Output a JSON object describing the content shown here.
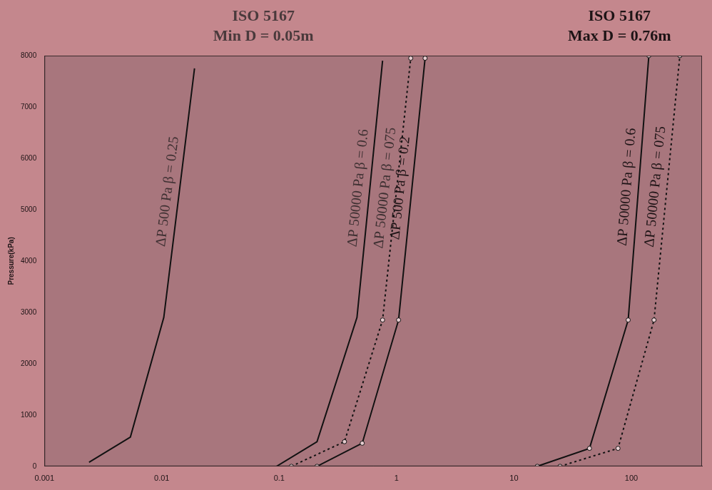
{
  "chart_data": {
    "type": "line",
    "annotations": [
      [
        "ISO 5167",
        "Min D = 0.05m"
      ],
      [
        "ISO 5167",
        "Max D = 0.76m"
      ]
    ],
    "y_label": "Pressure(kPa)",
    "log": "x",
    "grid": false,
    "xlim": [
      0.001,
      400
    ],
    "xticks": [
      0.001,
      0.01,
      0.1,
      1,
      10,
      100
    ],
    "ylim": [
      0,
      8000
    ],
    "yticks": [
      0,
      1000,
      2000,
      3000,
      4000,
      5000,
      6000,
      7000,
      8000
    ],
    "series": [
      {
        "name": "ΔP 500 Pa β = 0.25",
        "color": "#111111",
        "line_style": "solid",
        "marker": "none",
        "x": [
          0.0024,
          0.0054,
          0.0104,
          0.019
        ],
        "values": [
          80,
          570,
          2900,
          7750
        ]
      },
      {
        "name": "ΔP 50000 Pa β = 0.6",
        "color": "#111111",
        "line_style": "solid",
        "marker": "none",
        "x": [
          0.095,
          0.21,
          0.46,
          0.76
        ],
        "values": [
          0,
          480,
          2900,
          7900
        ]
      },
      {
        "name": "ΔP 50000 Pa β = 075",
        "color": "#111111",
        "line_style": "dotted",
        "marker": "circle",
        "x": [
          0.127,
          0.36,
          0.76,
          1.32
        ],
        "values": [
          0,
          480,
          2850,
          7950
        ]
      },
      {
        "name": "ΔP 500 Pa β = 0.2",
        "color": "#111111",
        "line_style": "solid",
        "marker": "circle",
        "x": [
          0.21,
          0.51,
          1.04,
          1.75
        ],
        "values": [
          0,
          450,
          2850,
          7950
        ]
      },
      {
        "name": "ΔP 50000 Pa β = 0.6",
        "color": "#111111",
        "line_style": "solid",
        "marker": "circle",
        "x": [
          15.8,
          44,
          94,
          141
        ],
        "values": [
          0,
          350,
          2850,
          8000
        ]
      },
      {
        "name": "ΔP 50000 Pa β = 075",
        "color": "#111111",
        "line_style": "dotted",
        "marker": "circle",
        "x": [
          24.7,
          77,
          156,
          259
        ],
        "values": [
          0,
          350,
          2850,
          8000
        ]
      }
    ]
  }
}
